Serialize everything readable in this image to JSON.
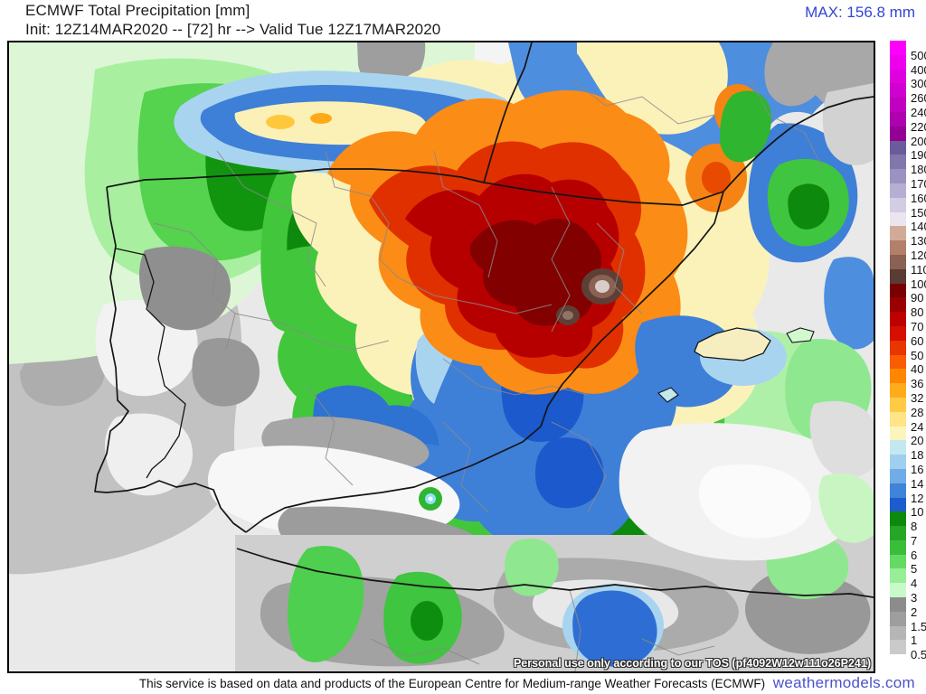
{
  "header": {
    "title_line1": "ECMWF Total Precipitation [mm]",
    "title_line2": "Init: 12Z14MAR2020 -- [72] hr --> Valid Tue 12Z17MAR2020",
    "max_label": "MAX: 156.8 mm"
  },
  "map": {
    "watermark": "Personal use only according to our TOS (pf4092W12w111o26P241)"
  },
  "legend": {
    "unit": "mm",
    "entries": [
      {
        "value": "500",
        "color": "#FB00FB"
      },
      {
        "value": "400",
        "color": "#EE00EE"
      },
      {
        "value": "300",
        "color": "#DF00DF"
      },
      {
        "value": "260",
        "color": "#D000D0"
      },
      {
        "value": "240",
        "color": "#C000C0"
      },
      {
        "value": "220",
        "color": "#AE00AE"
      },
      {
        "value": "200",
        "color": "#930093"
      },
      {
        "value": "190",
        "color": "#6A5B9B"
      },
      {
        "value": "180",
        "color": "#8177AD"
      },
      {
        "value": "170",
        "color": "#9B92C1"
      },
      {
        "value": "160",
        "color": "#B7AFD3"
      },
      {
        "value": "150",
        "color": "#D3CDE3"
      },
      {
        "value": "140",
        "color": "#EAE5EF"
      },
      {
        "value": "130",
        "color": "#D2AB98"
      },
      {
        "value": "120",
        "color": "#B28069"
      },
      {
        "value": "110",
        "color": "#8A6152"
      },
      {
        "value": "100",
        "color": "#5A3C34"
      },
      {
        "value": "90",
        "color": "#790000"
      },
      {
        "value": "80",
        "color": "#9B0000"
      },
      {
        "value": "70",
        "color": "#BD0000"
      },
      {
        "value": "60",
        "color": "#D51000"
      },
      {
        "value": "50",
        "color": "#E93500"
      },
      {
        "value": "40",
        "color": "#FA5C00"
      },
      {
        "value": "36",
        "color": "#FF8600"
      },
      {
        "value": "32",
        "color": "#FFAC1C"
      },
      {
        "value": "28",
        "color": "#FFCB46"
      },
      {
        "value": "24",
        "color": "#FFE488"
      },
      {
        "value": "20",
        "color": "#FDF4BC"
      },
      {
        "value": "18",
        "color": "#C2E9F2"
      },
      {
        "value": "16",
        "color": "#9ED0EE"
      },
      {
        "value": "14",
        "color": "#70ACE6"
      },
      {
        "value": "12",
        "color": "#3F84DA"
      },
      {
        "value": "10",
        "color": "#1C5CCE"
      },
      {
        "value": "8",
        "color": "#0D8A0D"
      },
      {
        "value": "7",
        "color": "#26A626"
      },
      {
        "value": "6",
        "color": "#3ABE3A"
      },
      {
        "value": "5",
        "color": "#64DA64"
      },
      {
        "value": "4",
        "color": "#96EE96"
      },
      {
        "value": "3",
        "color": "#C9F9C9"
      },
      {
        "value": "2",
        "color": "#8C8C8C"
      },
      {
        "value": "1.5",
        "color": "#9E9E9E"
      },
      {
        "value": "1",
        "color": "#B6B6B6"
      },
      {
        "value": "0.5",
        "color": "#CACACA"
      }
    ]
  },
  "footer": {
    "disclaimer": "This service is based on data and products of the European Centre for Medium-range Weather Forecasts (ECMWF)",
    "brand": "weathermodels.com"
  },
  "colors": {
    "max_text": "#3346D3",
    "brand_text": "#4A52CC"
  },
  "chart_data": {
    "type": "heatmap",
    "title": "ECMWF Total Precipitation [mm]",
    "forecast_init": "12Z14MAR2020",
    "forecast_hour": 72,
    "valid": "Tue 12Z17MAR2020",
    "max_value_mm": 156.8,
    "legend_scale_mm": [
      0.5,
      1,
      1.5,
      2,
      3,
      4,
      5,
      6,
      7,
      8,
      10,
      12,
      14,
      16,
      18,
      20,
      24,
      28,
      32,
      36,
      40,
      50,
      60,
      70,
      80,
      90,
      100,
      110,
      120,
      130,
      140,
      150,
      160,
      170,
      180,
      190,
      200,
      220,
      240,
      260,
      300,
      400,
      500
    ],
    "region": "Iberian Peninsula, southern France, western Mediterranean, northern Africa",
    "notes": "Precipitation maximum (dark red / brown core, 100-130+ mm) over northeastern Spain (Ebro basin) with absolute max 156.8 mm near the east coast; blues 10-20 mm over Bay of Biscay band and southeast Spain / Balearic area; greens 3-10 mm over Galicia, Mediterranean and northern Morocco; grays under 3 mm over Portugal, Andalusia and north Africa interior."
  }
}
